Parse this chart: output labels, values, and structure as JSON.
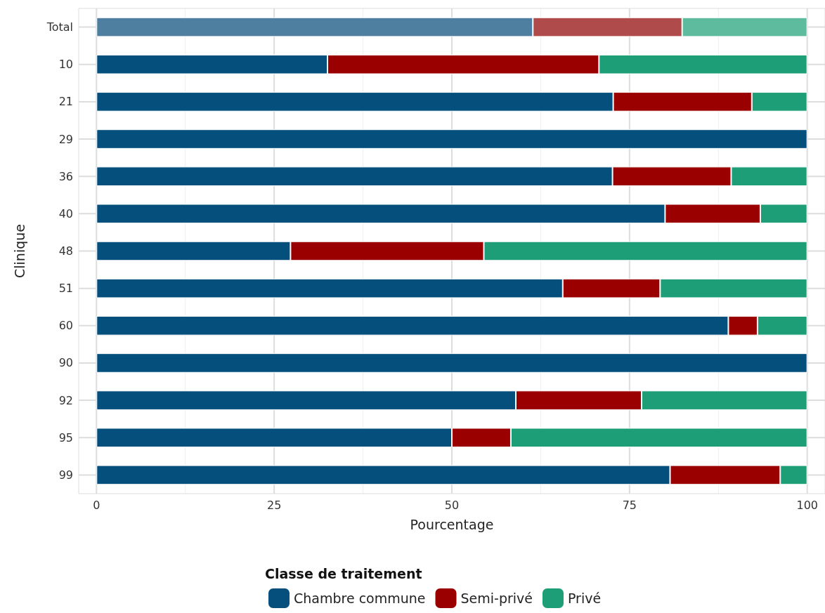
{
  "chart_data": {
    "type": "bar",
    "orientation": "horizontal",
    "stacked": true,
    "xlabel": "Pourcentage",
    "ylabel": "Clinique",
    "legend_title": "Classe de traitement",
    "legend": "bottom",
    "grid": true,
    "categories": [
      "Total",
      "10",
      "21",
      "29",
      "36",
      "40",
      "48",
      "51",
      "60",
      "90",
      "92",
      "95",
      "99"
    ],
    "xlim": [
      -2.5,
      102.5
    ],
    "xticks": [
      0,
      {
        "value": 12.5,
        "label": null
      },
      25,
      {
        "value": 37.5,
        "label": null
      },
      50,
      {
        "value": 62.5,
        "label": null
      },
      75,
      {
        "value": 87.5,
        "label": null
      },
      100
    ],
    "series": [
      {
        "name": "Chambre commune",
        "color": "#054f7c",
        "colors": [
          "#4f7fa0",
          "#054f7c",
          "#054f7c",
          "#054f7c",
          "#054f7c",
          "#054f7c",
          "#054f7c",
          "#054f7c",
          "#054f7c",
          "#054f7c",
          "#054f7c",
          "#054f7c",
          "#054f7c"
        ],
        "values": [
          61.4,
          32.5,
          72.7,
          100,
          72.6,
          80.0,
          27.3,
          65.6,
          88.9,
          100,
          59.0,
          50.0,
          80.7
        ]
      },
      {
        "name": "Semi-privé",
        "color": "#9a0000",
        "colors": [
          "#b04b4b",
          "#9a0000",
          "#9a0000",
          "#9a0000",
          "#9a0000",
          "#9a0000",
          "#9a0000",
          "#9a0000",
          "#9a0000",
          "#9a0000",
          "#9a0000",
          "#9a0000",
          "#9a0000"
        ],
        "values": [
          21.0,
          38.2,
          19.5,
          0,
          16.7,
          13.4,
          27.2,
          13.7,
          4.1,
          0,
          17.7,
          8.3,
          15.5
        ]
      },
      {
        "name": "Privé",
        "color": "#1d9e77",
        "colors": [
          "#5fbb9d",
          "#1d9e77",
          "#1d9e77",
          "#1d9e77",
          "#1d9e77",
          "#1d9e77",
          "#1d9e77",
          "#1d9e77",
          "#1d9e77",
          "#1d9e77",
          "#1d9e77",
          "#1d9e77",
          "#1d9e77"
        ],
        "values": [
          17.6,
          29.3,
          7.8,
          0,
          10.7,
          6.6,
          45.5,
          20.7,
          7.0,
          0,
          23.3,
          41.7,
          3.8
        ]
      }
    ]
  }
}
